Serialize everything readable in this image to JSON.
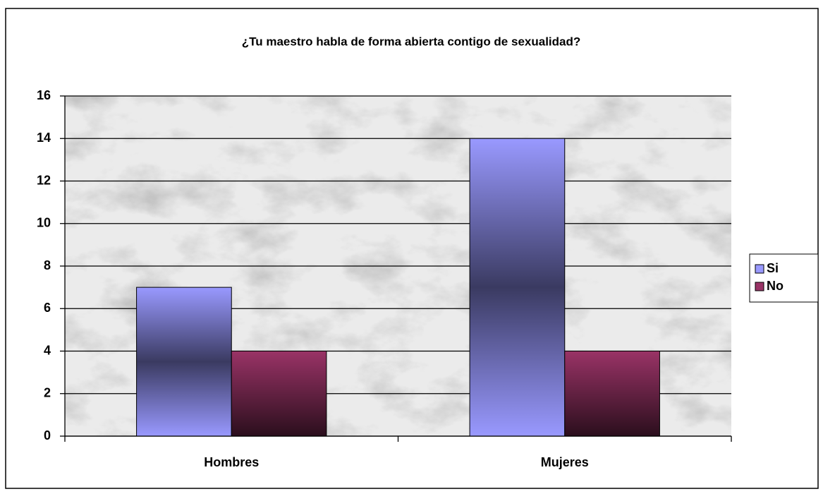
{
  "chart_data": {
    "type": "bar",
    "title": "¿Tu maestro habla de forma abierta contigo de sexualidad?",
    "categories": [
      "Hombres",
      "Mujeres"
    ],
    "series": [
      {
        "name": "Si",
        "color": "#9999ff",
        "values": [
          7,
          14
        ]
      },
      {
        "name": "No",
        "color": "#993366",
        "values": [
          4,
          4
        ]
      }
    ],
    "ylim": [
      0,
      16
    ],
    "yticks": [
      0,
      2,
      4,
      6,
      8,
      10,
      12,
      14,
      16
    ],
    "grid": true,
    "legend": "right"
  }
}
